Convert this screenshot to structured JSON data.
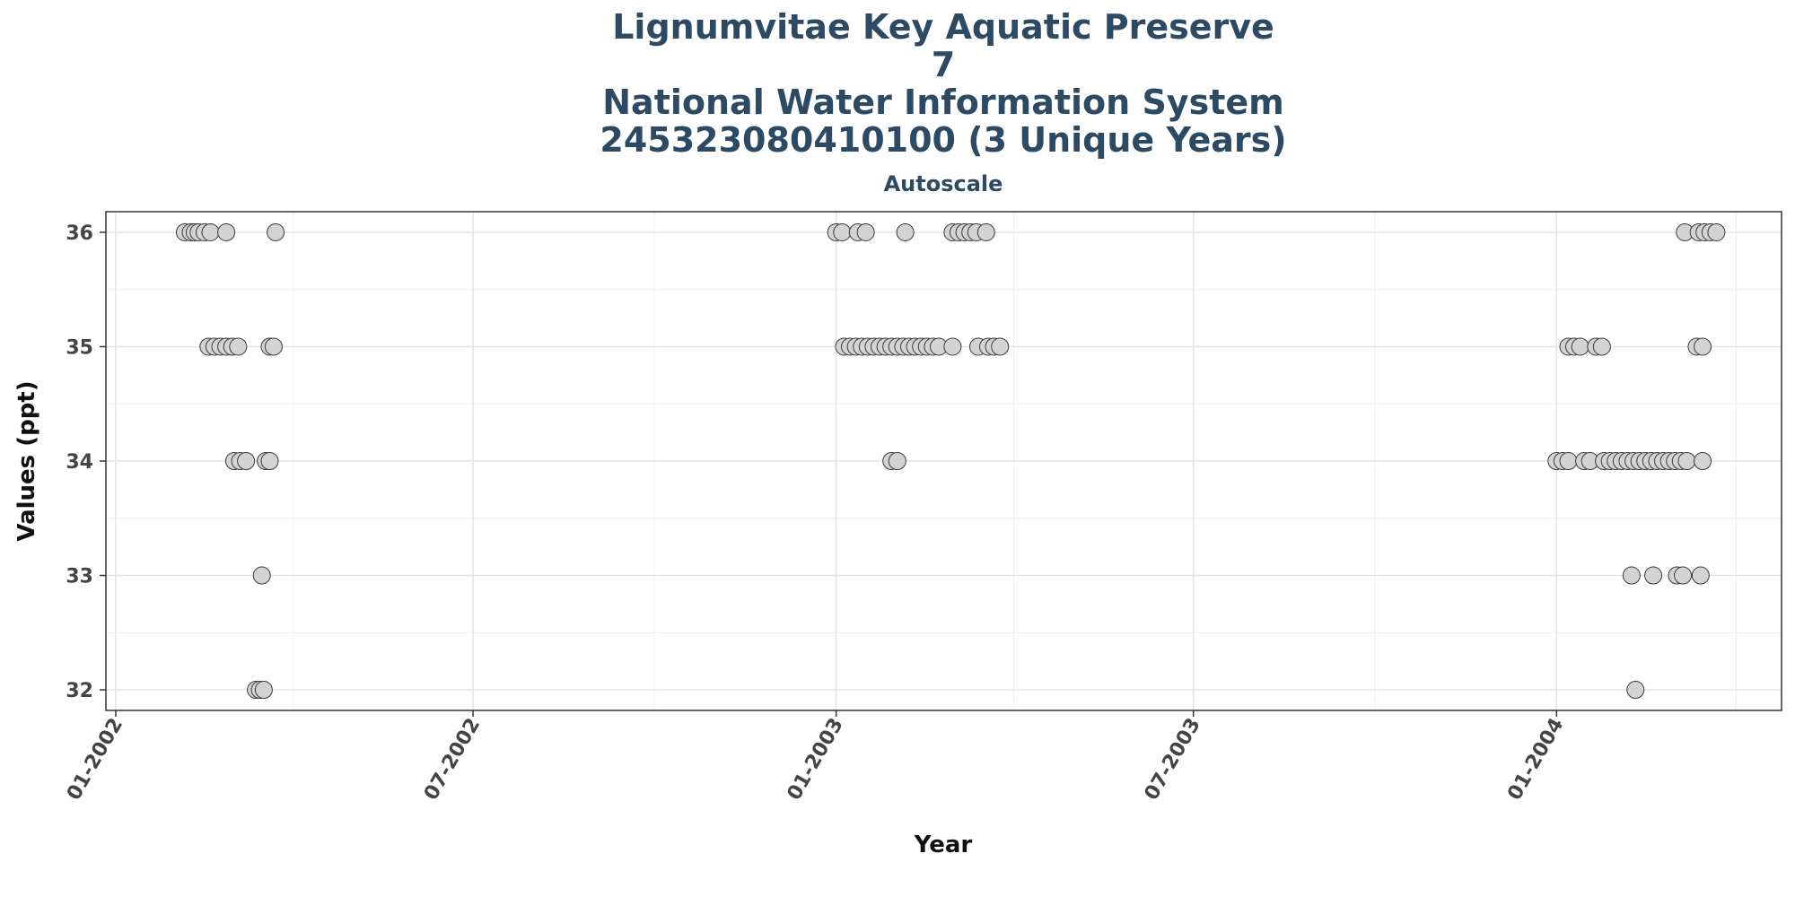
{
  "chart_data": {
    "type": "scatter",
    "title_lines": [
      "Lignumvitae Key Aquatic Preserve",
      "7",
      "National Water Information System",
      "245323080410100 (3 Unique Years)"
    ],
    "subtitle": "Autoscale",
    "xlabel": "Year",
    "ylabel": "Values (ppt)",
    "xlim": [
      "2001-12-27",
      "2004-04-24"
    ],
    "ylim": [
      31.82,
      36.18
    ],
    "x_ticks": [
      "2002-01-01",
      "2002-07-01",
      "2003-01-01",
      "2003-07-01",
      "2004-01-01"
    ],
    "x_tick_labels": [
      "01-2002",
      "07-2002",
      "01-2003",
      "07-2003",
      "01-2004"
    ],
    "y_ticks": [
      32,
      33,
      34,
      35,
      36
    ],
    "y_tick_labels": [
      "32",
      "33",
      "34",
      "35",
      "36"
    ],
    "grid": true,
    "marker_color": "#d3d3d3",
    "marker_edge_color": "#3a3a3a",
    "series": [
      {
        "points": [
          [
            "2002-02-05",
            36
          ],
          [
            "2002-02-08",
            36
          ],
          [
            "2002-02-10",
            36
          ],
          [
            "2002-02-12",
            36
          ],
          [
            "2002-02-15",
            36
          ],
          [
            "2002-02-18",
            36
          ],
          [
            "2002-02-26",
            36
          ],
          [
            "2002-03-23",
            36
          ],
          [
            "2002-02-17",
            35
          ],
          [
            "2002-02-20",
            35
          ],
          [
            "2002-02-23",
            35
          ],
          [
            "2002-02-26",
            35
          ],
          [
            "2002-03-01",
            35
          ],
          [
            "2002-03-04",
            35
          ],
          [
            "2002-03-20",
            35
          ],
          [
            "2002-03-22",
            35
          ],
          [
            "2002-03-02",
            34
          ],
          [
            "2002-03-05",
            34
          ],
          [
            "2002-03-08",
            34
          ],
          [
            "2002-03-18",
            34
          ],
          [
            "2002-03-20",
            34
          ],
          [
            "2002-03-16",
            33
          ],
          [
            "2002-03-13",
            32
          ],
          [
            "2002-03-15",
            32
          ],
          [
            "2002-03-17",
            32
          ],
          [
            "2003-01-01",
            36
          ],
          [
            "2003-01-04",
            36
          ],
          [
            "2003-01-12",
            36
          ],
          [
            "2003-01-16",
            36
          ],
          [
            "2003-02-05",
            36
          ],
          [
            "2003-03-01",
            36
          ],
          [
            "2003-03-04",
            36
          ],
          [
            "2003-03-07",
            36
          ],
          [
            "2003-03-10",
            36
          ],
          [
            "2003-03-13",
            36
          ],
          [
            "2003-03-18",
            36
          ],
          [
            "2003-01-05",
            35
          ],
          [
            "2003-01-08",
            35
          ],
          [
            "2003-01-11",
            35
          ],
          [
            "2003-01-14",
            35
          ],
          [
            "2003-01-17",
            35
          ],
          [
            "2003-01-20",
            35
          ],
          [
            "2003-01-23",
            35
          ],
          [
            "2003-01-26",
            35
          ],
          [
            "2003-01-29",
            35
          ],
          [
            "2003-02-01",
            35
          ],
          [
            "2003-02-04",
            35
          ],
          [
            "2003-02-07",
            35
          ],
          [
            "2003-02-10",
            35
          ],
          [
            "2003-02-13",
            35
          ],
          [
            "2003-02-16",
            35
          ],
          [
            "2003-02-19",
            35
          ],
          [
            "2003-02-22",
            35
          ],
          [
            "2003-03-01",
            35
          ],
          [
            "2003-03-14",
            35
          ],
          [
            "2003-03-19",
            35
          ],
          [
            "2003-03-22",
            35
          ],
          [
            "2003-03-25",
            35
          ],
          [
            "2003-01-29",
            34
          ],
          [
            "2003-02-01",
            34
          ],
          [
            "2004-01-01",
            34
          ],
          [
            "2004-01-04",
            34
          ],
          [
            "2004-01-07",
            34
          ],
          [
            "2004-01-15",
            34
          ],
          [
            "2004-01-18",
            34
          ],
          [
            "2004-01-25",
            34
          ],
          [
            "2004-01-28",
            34
          ],
          [
            "2004-01-31",
            34
          ],
          [
            "2004-02-03",
            34
          ],
          [
            "2004-02-06",
            34
          ],
          [
            "2004-02-09",
            34
          ],
          [
            "2004-02-12",
            34
          ],
          [
            "2004-02-15",
            34
          ],
          [
            "2004-02-18",
            34
          ],
          [
            "2004-02-21",
            34
          ],
          [
            "2004-02-24",
            34
          ],
          [
            "2004-02-27",
            34
          ],
          [
            "2004-03-01",
            34
          ],
          [
            "2004-03-04",
            34
          ],
          [
            "2004-03-07",
            34
          ],
          [
            "2004-03-15",
            34
          ],
          [
            "2004-01-07",
            35
          ],
          [
            "2004-01-10",
            35
          ],
          [
            "2004-01-13",
            35
          ],
          [
            "2004-01-21",
            35
          ],
          [
            "2004-01-24",
            35
          ],
          [
            "2004-03-12",
            35
          ],
          [
            "2004-03-15",
            35
          ],
          [
            "2004-03-06",
            36
          ],
          [
            "2004-03-13",
            36
          ],
          [
            "2004-03-16",
            36
          ],
          [
            "2004-03-19",
            36
          ],
          [
            "2004-03-22",
            36
          ],
          [
            "2004-02-08",
            33
          ],
          [
            "2004-02-19",
            33
          ],
          [
            "2004-03-02",
            33
          ],
          [
            "2004-03-05",
            33
          ],
          [
            "2004-03-14",
            33
          ],
          [
            "2004-02-10",
            32
          ]
        ]
      }
    ]
  }
}
